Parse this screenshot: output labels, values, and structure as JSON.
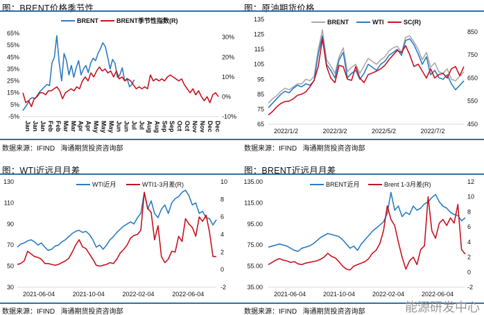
{
  "source_label": "数据来源：IFIND",
  "org_label": "海通期货投资咨询部",
  "watermark": "能源研发中心",
  "colors": {
    "blue": "#2a7cc2",
    "red": "#c8121e",
    "gray": "#a9a9a9",
    "rule": "#2f6fa8"
  },
  "chart_data": [
    {
      "type": "line",
      "title": "图：BRENT价格季节性",
      "x_ticks": [
        "Jan",
        "Jan",
        "Jan",
        "Feb",
        "Feb",
        "Mar",
        "Mar",
        "Apr",
        "Apr",
        "May",
        "May",
        "May",
        "Jun",
        "Jun",
        "Jul",
        "Jul",
        "Aug",
        "Aug",
        "Sep",
        "Sep",
        "Oct",
        "Oct",
        "Nov",
        "Nov",
        "Dec",
        "Dec"
      ],
      "left_ticks": [
        "65%",
        "55%",
        "45%",
        "35%",
        "25%",
        "15%",
        "5%",
        "-5%"
      ],
      "left_range": [
        -5,
        65
      ],
      "right_ticks": [
        "30%",
        "20%",
        "10%",
        "0%",
        "-10%"
      ],
      "right_range": [
        -10,
        32
      ],
      "series": [
        {
          "name": "BRENT",
          "axis": "left",
          "color": "blue",
          "span": 0.57,
          "values": [
            0,
            3,
            6,
            10,
            11,
            10,
            13,
            16,
            18,
            20,
            22,
            21,
            40,
            45,
            63,
            40,
            25,
            48,
            42,
            30,
            38,
            28,
            36,
            42,
            30,
            35,
            38,
            32,
            40,
            44,
            42,
            48,
            52,
            57,
            54,
            45,
            35,
            43,
            40,
            28,
            30,
            36,
            25,
            27,
            20,
            22,
            26
          ]
        },
        {
          "name": "BRENT季节性指数(R)",
          "axis": "right",
          "color": "red",
          "span": 1.0,
          "values": [
            2,
            -3,
            -2,
            -5,
            -1,
            0,
            2,
            2,
            1,
            3,
            3,
            4,
            5,
            3,
            -1,
            2,
            3,
            4,
            3,
            5,
            4,
            8,
            10,
            8,
            12,
            10,
            13,
            15,
            13,
            14,
            12,
            13,
            10,
            13,
            9,
            10,
            8,
            9,
            8,
            6,
            4,
            5,
            4,
            5,
            4,
            11,
            8,
            9,
            8,
            9,
            8,
            10,
            11,
            10,
            9,
            8,
            9,
            6,
            4,
            2,
            4,
            1,
            3,
            0,
            -2,
            0,
            -3,
            1,
            2,
            0
          ]
        }
      ]
    },
    {
      "type": "line",
      "title": "图：原油期货价格",
      "x_ticks": [
        "2022/1/2",
        "2022/3/2",
        "2022/5/2",
        "2022/7/2"
      ],
      "left_ticks": [
        "135",
        "125",
        "115",
        "105",
        "95",
        "85",
        "75",
        "65"
      ],
      "left_range": [
        65,
        135
      ],
      "right_ticks": [
        "850",
        "750",
        "650",
        "550",
        "450"
      ],
      "right_range": [
        450,
        904
      ],
      "series": [
        {
          "name": "BRENT",
          "axis": "left",
          "color": "gray",
          "span": 1.0,
          "values": [
            79,
            82,
            84,
            87,
            89,
            88,
            90,
            92,
            92,
            95,
            94,
            97,
            115,
            128,
            108,
            104,
            99,
            110,
            116,
            100,
            103,
            105,
            99,
            104,
            109,
            107,
            105,
            108,
            110,
            114,
            116,
            117,
            113,
            123,
            124,
            120,
            115,
            108,
            113,
            103,
            106,
            100,
            99,
            102,
            95,
            94,
            97,
            100
          ]
        },
        {
          "name": "WTI",
          "axis": "left",
          "color": "blue",
          "span": 1.0,
          "values": [
            76,
            79,
            82,
            85,
            87,
            86,
            89,
            91,
            90,
            92,
            91,
            94,
            112,
            124,
            105,
            101,
            96,
            108,
            113,
            96,
            99,
            101,
            95,
            99,
            105,
            103,
            101,
            105,
            107,
            111,
            113,
            115,
            111,
            121,
            122,
            118,
            112,
            105,
            110,
            98,
            101,
            96,
            95,
            98,
            92,
            88,
            91,
            94
          ]
        },
        {
          "name": "SC(R)",
          "axis": "right",
          "color": "red",
          "span": 1.0,
          "values": [
            490,
            505,
            525,
            540,
            548,
            550,
            560,
            575,
            580,
            590,
            612,
            640,
            700,
            820,
            700,
            650,
            630,
            705,
            700,
            645,
            640,
            700,
            650,
            630,
            665,
            672,
            680,
            690,
            705,
            730,
            750,
            770,
            760,
            790,
            750,
            700,
            710,
            680,
            650,
            690,
            650,
            665,
            670,
            650,
            690,
            700,
            660,
            700
          ]
        }
      ]
    },
    {
      "type": "line",
      "title": "图：WTI近远月月差",
      "x_ticks": [
        "2021-06-04",
        "2021-10-04",
        "2022-02-04",
        "2022-06-04"
      ],
      "left_ticks": [
        "130",
        "110",
        "90",
        "70",
        "50",
        "30"
      ],
      "left_range": [
        30,
        130
      ],
      "right_ticks": [
        "10",
        "8",
        "6",
        "4",
        "2",
        "0",
        "-2"
      ],
      "right_range": [
        -2,
        10
      ],
      "series": [
        {
          "name": "WTI近月",
          "axis": "left",
          "color": "blue",
          "span": 1.0,
          "values": [
            68,
            71,
            72,
            74,
            75,
            73,
            70,
            72,
            68,
            65,
            66,
            69,
            70,
            73,
            75,
            78,
            81,
            83,
            84,
            82,
            83,
            80,
            75,
            68,
            70,
            66,
            70,
            75,
            78,
            82,
            85,
            88,
            90,
            92,
            90,
            96,
            100,
            120,
            104,
            112,
            100,
            96,
            104,
            108,
            100,
            110,
            114,
            116,
            120,
            122,
            117,
            108,
            110,
            100,
            102,
            96,
            95,
            89,
            94
          ]
        },
        {
          "name": "WTI1-3月差(R)",
          "axis": "right",
          "color": "red",
          "span": 1.0,
          "values": [
            0.6,
            0.7,
            1.0,
            2.1,
            1.8,
            1.5,
            1.4,
            1.2,
            0.7,
            0.7,
            0.6,
            0.5,
            0.6,
            0.8,
            1.0,
            1.3,
            2.0,
            2.8,
            3.4,
            2.6,
            2.4,
            1.8,
            1.2,
            0.5,
            0.4,
            0.5,
            0.6,
            0.8,
            0.7,
            1.2,
            1.9,
            2.3,
            2.8,
            3.6,
            3.9,
            4.0,
            4.5,
            8.8,
            7.0,
            6.5,
            3.4,
            5.0,
            1.5,
            0.8,
            1.2,
            2.1,
            2.0,
            3.8,
            3.2,
            5.8,
            5.2,
            4.8,
            3.8,
            6.0,
            5.5,
            6.2,
            4.3,
            1.5,
            1.5
          ]
        }
      ]
    },
    {
      "type": "line",
      "title": "图：BRENT近远月月差",
      "x_ticks": [
        "2021-06-04",
        "2021-10-04",
        "2022-02-04",
        "2022-06-04"
      ],
      "left_ticks": [
        "135.00",
        "115.00",
        "95.00",
        "75.00",
        "55.00",
        "35.00"
      ],
      "left_range": [
        35,
        135
      ],
      "right_ticks": [
        "12",
        "10",
        "8",
        "6",
        "4",
        "2",
        "0",
        "-2"
      ],
      "right_range": [
        -2,
        12
      ],
      "series": [
        {
          "name": "BRENT近月",
          "axis": "left",
          "color": "blue",
          "span": 1.0,
          "values": [
            73,
            74,
            75,
            76,
            75,
            74,
            72,
            70,
            69,
            72,
            73,
            74,
            76,
            79,
            82,
            84,
            86,
            85,
            84,
            83,
            80,
            76,
            72,
            74,
            70,
            76,
            80,
            84,
            88,
            91,
            94,
            97,
            105,
            125,
            108,
            112,
            102,
            106,
            104,
            112,
            108,
            110,
            114,
            116,
            120,
            123,
            116,
            112,
            110,
            106,
            104,
            103,
            98,
            101
          ]
        },
        {
          "name": "Brent 1-3月差(R)",
          "axis": "right",
          "color": "red",
          "span": 1.0,
          "values": [
            1.0,
            1.3,
            1.6,
            1.8,
            1.6,
            1.5,
            1.3,
            1.4,
            1.1,
            1.0,
            1.2,
            1.3,
            1.4,
            1.5,
            1.7,
            2.0,
            2.5,
            2.1,
            1.9,
            1.4,
            0.8,
            0.4,
            0.3,
            0.8,
            1.0,
            1.2,
            1.4,
            1.8,
            2.5,
            2.9,
            3.8,
            5.5,
            8.8,
            7.0,
            6.2,
            4.0,
            2.0,
            0.4,
            1.5,
            2.0,
            1.0,
            3.0,
            3.5,
            10.0,
            5.5,
            4.5,
            6.5,
            7.0,
            6.2,
            7.2,
            6.5,
            9.0,
            3.0,
            2.4
          ]
        }
      ]
    }
  ]
}
